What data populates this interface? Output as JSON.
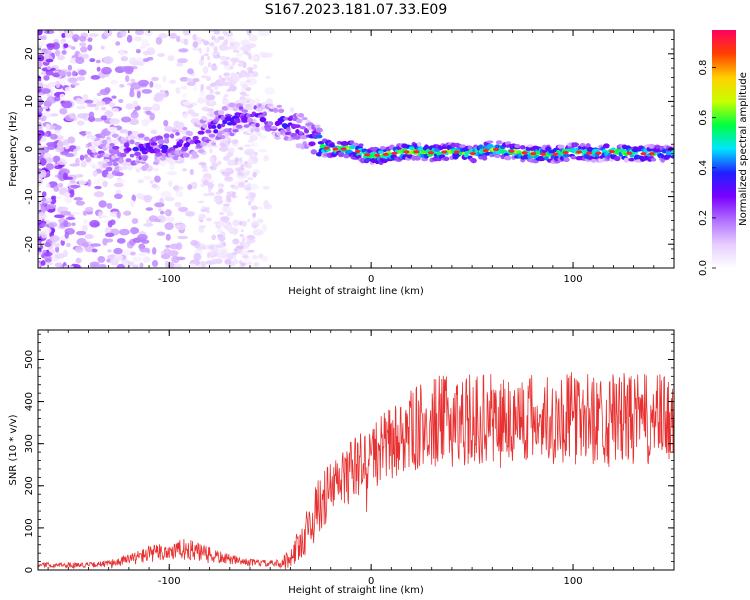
{
  "title": "S167.2023.181.07.33.E09",
  "chart_data": [
    {
      "type": "heatmap",
      "xlabel": "Height of straight line (km)",
      "ylabel": "Frequency (Hz)",
      "xlim": [
        -165,
        150
      ],
      "ylim": [
        -25,
        25
      ],
      "xticks": [
        -100,
        0,
        100
      ],
      "yticks": [
        -20,
        -10,
        0,
        10,
        20
      ],
      "xtick_labels": [
        "-100",
        "0",
        "100"
      ],
      "ytick_labels": [
        "-20",
        "-10",
        "0",
        "10",
        "20"
      ],
      "ridge": {
        "x": [
          -165,
          -140,
          -130,
          -120,
          -110,
          -100,
          -90,
          -80,
          -70,
          -60,
          -50,
          -40,
          -35,
          -30,
          -25,
          -20,
          -10,
          0,
          10,
          20,
          30,
          40,
          50,
          60,
          70,
          80,
          90,
          100,
          110,
          120,
          130,
          140,
          150
        ],
        "freq": [
          0,
          0,
          -1,
          -0.5,
          0,
          0.5,
          1,
          4,
          6,
          7,
          6,
          5,
          4,
          3,
          0.5,
          0,
          0,
          -1.5,
          -1,
          -0.5,
          -0.8,
          -0.5,
          -1,
          0,
          -0.5,
          -1,
          -1.2,
          -0.5,
          -1,
          -0.5,
          -1,
          -1,
          -0.8
        ],
        "amplitude": [
          0.02,
          0.1,
          0.2,
          0.3,
          0.3,
          0.3,
          0.25,
          0.3,
          0.35,
          0.25,
          0.3,
          0.35,
          0.3,
          0.25,
          0.6,
          0.6,
          0.65,
          0.65,
          0.6,
          0.7,
          0.65,
          0.6,
          0.6,
          0.65,
          0.6,
          0.65,
          0.6,
          0.6,
          0.55,
          0.6,
          0.6,
          0.55,
          0.5
        ]
      },
      "colorbar": {
        "label": "Normalized spectral amplitude",
        "ticks": [
          0.0,
          0.2,
          0.4,
          0.6,
          0.8
        ],
        "tick_labels": [
          "0.0",
          "0.2",
          "0.4",
          "0.6",
          "0.8"
        ],
        "range": [
          0,
          0.95
        ],
        "stops": [
          "#ffffff",
          "#e6ccff",
          "#b070ff",
          "#7a00ff",
          "#2020ff",
          "#00e5ff",
          "#00ff40",
          "#c8ff00",
          "#ffd000",
          "#ff4000",
          "#ff0060"
        ]
      }
    },
    {
      "type": "line",
      "xlabel": "Height of straight line (km)",
      "ylabel": "SNR (10 * v/v)",
      "xlim": [
        -165,
        150
      ],
      "ylim": [
        0,
        570
      ],
      "xticks": [
        -100,
        0,
        100
      ],
      "yticks": [
        0,
        100,
        200,
        300,
        400,
        500
      ],
      "xtick_labels": [
        "-100",
        "0",
        "100"
      ],
      "ytick_labels": [
        "0",
        "100",
        "200",
        "300",
        "400",
        "500"
      ],
      "color": "#e83030",
      "envelope": {
        "x": [
          -165,
          -140,
          -130,
          -120,
          -110,
          -100,
          -90,
          -80,
          -70,
          -60,
          -50,
          -45,
          -40,
          -35,
          -30,
          -25,
          -20,
          -10,
          0,
          10,
          20,
          30,
          40,
          60,
          80,
          100,
          120,
          140,
          150
        ],
        "mean": [
          12,
          12,
          15,
          25,
          38,
          45,
          48,
          35,
          25,
          18,
          15,
          15,
          30,
          65,
          110,
          160,
          190,
          235,
          270,
          300,
          330,
          350,
          355,
          360,
          360,
          360,
          360,
          355,
          360
        ],
        "spread": [
          6,
          6,
          8,
          14,
          20,
          25,
          25,
          20,
          12,
          8,
          8,
          10,
          25,
          45,
          60,
          70,
          70,
          75,
          80,
          90,
          100,
          110,
          110,
          110,
          110,
          110,
          110,
          110,
          110
        ]
      }
    }
  ]
}
